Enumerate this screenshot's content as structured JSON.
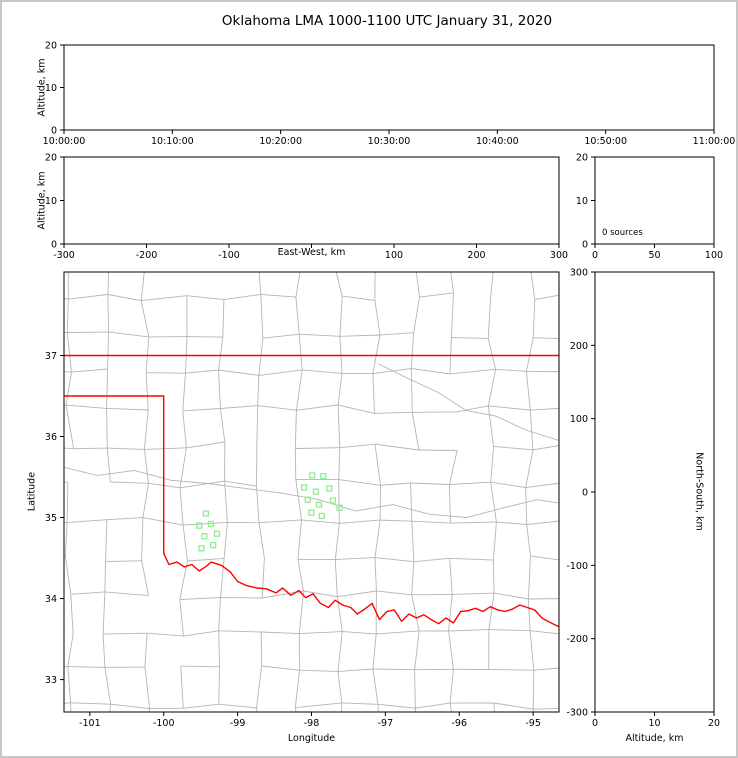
{
  "title": "Oklahoma LMA 1000-1100 UTC January 31, 2020",
  "colors": {
    "background": "#ffffff",
    "window_frame": "#c6c6c6",
    "axis": "#000000",
    "county_line": "#b5b5b5",
    "state_border": "#ff0000",
    "station_marker": "#90ee90"
  },
  "chart_data": [
    {
      "id": "time_height",
      "type": "scatter",
      "title": "",
      "xlabel": "",
      "ylabel": "Altitude, km",
      "xlim": [
        0,
        3600
      ],
      "ylim": [
        0,
        20
      ],
      "xticks": [
        0,
        600,
        1200,
        1800,
        2400,
        3000,
        3600
      ],
      "xtick_labels": [
        "10:00:00",
        "10:10:00",
        "10:20:00",
        "10:30:00",
        "10:40:00",
        "10:50:00",
        "11:00:00"
      ],
      "yticks": [
        0,
        10,
        20
      ],
      "ytick_labels": [
        "0",
        "10",
        "20"
      ],
      "points": []
    },
    {
      "id": "ew_height",
      "type": "scatter",
      "title": "",
      "xlabel": "East-West, km",
      "ylabel": "Altitude, km",
      "xlim": [
        -300,
        300
      ],
      "ylim": [
        0,
        20
      ],
      "xticks": [
        -300,
        -200,
        -100,
        0,
        100,
        200,
        300
      ],
      "xtick_labels": [
        "-300",
        "-200",
        "-100",
        "",
        "100",
        "200",
        "300"
      ],
      "yticks": [
        0,
        10,
        20
      ],
      "ytick_labels": [
        "0",
        "10",
        "20"
      ],
      "points": []
    },
    {
      "id": "alt_histogram",
      "type": "bar",
      "title": "",
      "xlabel": "",
      "ylabel": "",
      "xlim": [
        0,
        100
      ],
      "ylim": [
        0,
        20
      ],
      "xticks": [
        0,
        50,
        100
      ],
      "xtick_labels": [
        "0",
        "50",
        "100"
      ],
      "yticks": [
        0,
        10,
        20
      ],
      "ytick_labels": [
        "0",
        "10",
        "20"
      ],
      "annotation": "0 sources",
      "values": []
    },
    {
      "id": "plan_map",
      "type": "scatter",
      "title": "",
      "xlabel": "Longitude",
      "ylabel": "Latitude",
      "xlim": [
        -101.35,
        -94.65
      ],
      "ylim": [
        32.6,
        38.03
      ],
      "xticks": [
        -101,
        -100,
        -99,
        -98,
        -97,
        -96,
        -95
      ],
      "xtick_labels": [
        "-101",
        "-100",
        "-99",
        "-98",
        "-97",
        "-96",
        "-95"
      ],
      "yticks": [
        33,
        34,
        35,
        36,
        37
      ],
      "ytick_labels": [
        "33",
        "34",
        "35",
        "36",
        "37"
      ],
      "stations": [
        [
          -97.99,
          35.52
        ],
        [
          -97.84,
          35.51
        ],
        [
          -98.1,
          35.37
        ],
        [
          -97.94,
          35.32
        ],
        [
          -97.76,
          35.36
        ],
        [
          -98.05,
          35.22
        ],
        [
          -97.9,
          35.16
        ],
        [
          -97.71,
          35.21
        ],
        [
          -98.0,
          35.06
        ],
        [
          -97.86,
          35.02
        ],
        [
          -97.62,
          35.12
        ],
        [
          -99.43,
          35.05
        ],
        [
          -99.52,
          34.9
        ],
        [
          -99.36,
          34.92
        ],
        [
          -99.45,
          34.77
        ],
        [
          -99.28,
          34.8
        ],
        [
          -99.49,
          34.62
        ],
        [
          -99.33,
          34.66
        ]
      ],
      "state_border": [
        [
          [
            -101.35,
            37.0
          ],
          [
            -94.65,
            37.0
          ]
        ],
        [
          [
            -101.35,
            36.5
          ],
          [
            -100.0,
            36.5
          ],
          [
            -100.0,
            34.56
          ],
          [
            -99.93,
            34.42
          ],
          [
            -99.82,
            34.45
          ],
          [
            -99.72,
            34.39
          ],
          [
            -99.62,
            34.42
          ],
          [
            -99.52,
            34.34
          ],
          [
            -99.42,
            34.4
          ],
          [
            -99.36,
            34.45
          ],
          [
            -99.22,
            34.41
          ],
          [
            -99.1,
            34.33
          ],
          [
            -99.0,
            34.21
          ],
          [
            -98.88,
            34.16
          ],
          [
            -98.74,
            34.13
          ],
          [
            -98.61,
            34.12
          ],
          [
            -98.48,
            34.07
          ],
          [
            -98.39,
            34.13
          ],
          [
            -98.28,
            34.04
          ],
          [
            -98.17,
            34.1
          ],
          [
            -98.08,
            34.01
          ],
          [
            -97.98,
            34.06
          ],
          [
            -97.88,
            33.94
          ],
          [
            -97.77,
            33.89
          ],
          [
            -97.68,
            33.98
          ],
          [
            -97.58,
            33.92
          ],
          [
            -97.47,
            33.89
          ],
          [
            -97.38,
            33.81
          ],
          [
            -97.28,
            33.87
          ],
          [
            -97.18,
            33.94
          ],
          [
            -97.08,
            33.74
          ],
          [
            -96.98,
            33.84
          ],
          [
            -96.88,
            33.86
          ],
          [
            -96.78,
            33.72
          ],
          [
            -96.68,
            33.81
          ],
          [
            -96.58,
            33.76
          ],
          [
            -96.48,
            33.8
          ],
          [
            -96.38,
            33.74
          ],
          [
            -96.28,
            33.69
          ],
          [
            -96.18,
            33.76
          ],
          [
            -96.08,
            33.7
          ],
          [
            -95.98,
            33.84
          ],
          [
            -95.88,
            33.85
          ],
          [
            -95.78,
            33.88
          ],
          [
            -95.68,
            33.84
          ],
          [
            -95.58,
            33.9
          ],
          [
            -95.48,
            33.86
          ],
          [
            -95.38,
            33.84
          ],
          [
            -95.28,
            33.87
          ],
          [
            -95.18,
            33.92
          ],
          [
            -95.08,
            33.89
          ],
          [
            -94.98,
            33.86
          ],
          [
            -94.88,
            33.76
          ],
          [
            -94.78,
            33.71
          ],
          [
            -94.6,
            33.63
          ]
        ]
      ],
      "rivers": [
        [
          [
            -101.35,
            35.62
          ],
          [
            -100.9,
            35.52
          ],
          [
            -100.4,
            35.58
          ],
          [
            -99.9,
            35.46
          ],
          [
            -99.4,
            35.42
          ],
          [
            -98.9,
            35.36
          ],
          [
            -98.4,
            35.3
          ],
          [
            -97.9,
            35.22
          ],
          [
            -97.4,
            35.08
          ],
          [
            -96.9,
            35.16
          ],
          [
            -96.4,
            35.04
          ],
          [
            -95.9,
            35.0
          ],
          [
            -95.4,
            35.12
          ],
          [
            -94.95,
            35.22
          ],
          [
            -94.65,
            35.18
          ]
        ],
        [
          [
            -97.1,
            36.9
          ],
          [
            -96.7,
            36.72
          ],
          [
            -96.3,
            36.55
          ],
          [
            -95.9,
            36.32
          ],
          [
            -95.5,
            36.25
          ],
          [
            -95.1,
            36.08
          ],
          [
            -94.65,
            35.95
          ]
        ]
      ]
    },
    {
      "id": "ns_height",
      "type": "scatter",
      "title": "",
      "xlabel": "Altitude, km",
      "ylabel": "North-South, km",
      "xlim": [
        0,
        20
      ],
      "ylim": [
        -300,
        300
      ],
      "xticks": [
        0,
        10,
        20
      ],
      "xtick_labels": [
        "0",
        "10",
        "20"
      ],
      "yticks": [
        300,
        200,
        100,
        0,
        -100,
        -200,
        -300
      ],
      "ytick_labels": [
        "300",
        "200",
        "100",
        "0",
        "-100",
        "-200",
        "-300"
      ],
      "points": []
    }
  ]
}
